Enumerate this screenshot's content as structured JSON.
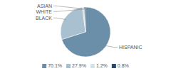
{
  "chart_data": {
    "type": "pie",
    "categories": [
      "HISPANIC",
      "BLACK",
      "WHITE",
      "ASIAN"
    ],
    "values": [
      70.1,
      27.9,
      1.2,
      0.8
    ],
    "value_labels": [
      "70.1%",
      "27.9%",
      "1.2%",
      "0.8%"
    ],
    "colors": [
      "#6b8fa8",
      "#a8c0cf",
      "#d4e2ea",
      "#2b4a6b"
    ],
    "legend": "bottom"
  }
}
